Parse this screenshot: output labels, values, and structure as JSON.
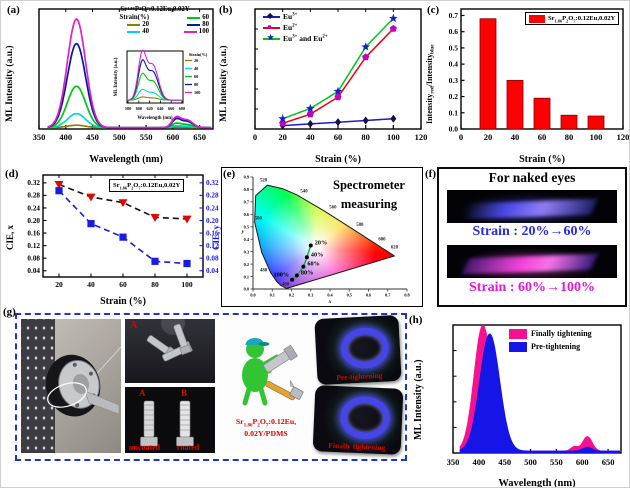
{
  "colors": {
    "panel_letter": "#000000",
    "red_text": "#e00000",
    "g_border_blue": "#2233cc"
  },
  "formula": {
    "el1": "Sr",
    "sub1": "1.86",
    "el2": "P",
    "sub2": "2",
    "el3": "O",
    "sub3": "7",
    "tail": ":0.12Eu,0.02Y"
  },
  "formula_pdms_tail": ":0.12Eu,",
  "formula_pdms_line2": "0.02Y/PDMS",
  "panels": {
    "a": {
      "label": "(a)",
      "xlabel": "Wavelength (nm)",
      "ylabel": "ML Intensity (a.u.)",
      "strain_title": "Strain(%)",
      "strain_labels": [
        "20",
        "40",
        "60",
        "80",
        "100"
      ],
      "inset": {
        "xlabel": "Wavelength (nm)",
        "ylabel": "ML Intensity (a.u.)",
        "strain_title": "Strain(%)"
      }
    },
    "b": {
      "label": "(b)",
      "xlabel": "Strain (%)",
      "ylabel": "ML Intensity (a.u.)",
      "legend": {
        "i1_base": "Eu",
        "i1_sup": "3+",
        "i2_base": "Eu",
        "i2_sup": "2+",
        "i3_base1": "Eu",
        "i3_sup1": "3+",
        "i3_base2": " and Eu",
        "i3_sup2": "2+"
      }
    },
    "c": {
      "label": "(c)",
      "xlabel": "Strain (%)",
      "ylabel": {
        "p1": "Intensity",
        "s1": "red",
        "p2": "/Intensity",
        "s2": "blue"
      }
    },
    "d": {
      "label": "(d)",
      "xlabel": "Strain (%)",
      "ylabel_left": "CIE, x",
      "ylabel_right": "CIE, y"
    },
    "e": {
      "label": "(e)",
      "annotation1": "Spectrometer",
      "annotation2": "measuring",
      "axis_x_letter": "x",
      "axis_y_letter": "y"
    },
    "f": {
      "label": "(f)",
      "title": "For naked eyes",
      "caption1": "Strain : 20%→60%",
      "caption1_color": "#2a2ae6",
      "caption2": "Strain : 60%→100%",
      "caption2_color": "#e416d4"
    },
    "g": {
      "label": "(g)",
      "photo_top_label": "A",
      "photo_bottom_label_a": "A",
      "photo_bottom_label_b": "B",
      "uncoated": "uncoated",
      "coated": "coated",
      "pre_caption": "Pre-tightening",
      "final_caption": "Finally tightening"
    },
    "h": {
      "label": "(h)",
      "xlabel": "Wavelength (nm)",
      "ylabel": "ML Intensity (a.u.)",
      "legend1": "Finally tightening",
      "legend2": "Pre-tightening"
    }
  },
  "chart_data": [
    {
      "panel": "a",
      "type": "line",
      "legend_title": "Sr1.86P2O7:0.12Eu,0.02Y",
      "xlabel": "Wavelength (nm)",
      "ylabel": "ML Intensity (a.u.)",
      "xlim": [
        350,
        675
      ],
      "xticks": [
        350,
        400,
        450,
        500,
        550,
        600,
        650
      ],
      "main_peak_nm": 420,
      "red_peak_nm": 612,
      "series": [
        {
          "name": "20",
          "color": "#8f7f00",
          "main_amp": 0.022,
          "red_amp": 0.004
        },
        {
          "name": "40",
          "color": "#00d8d8",
          "main_amp": 0.125,
          "red_amp": 0.015
        },
        {
          "name": "60",
          "color": "#00c414",
          "main_amp": 0.37,
          "red_amp": 0.035
        },
        {
          "name": "80",
          "color": "#001a9e",
          "main_amp": 0.75,
          "red_amp": 0.07
        },
        {
          "name": "100",
          "color": "#e020cc",
          "main_amp": 0.97,
          "red_amp": 0.085
        }
      ]
    },
    {
      "panel": "a-inset",
      "type": "line",
      "xlim": [
        578,
        682
      ],
      "xticks": [
        580,
        600,
        620,
        640,
        660,
        680
      ],
      "hump_centers_nm": [
        606,
        626
      ],
      "amps": [
        0.06,
        0.2,
        0.5,
        0.75,
        0.93
      ]
    },
    {
      "panel": "b",
      "type": "line",
      "xlabel": "Strain (%)",
      "ylabel": "ML Intensity (a.u.)",
      "x": [
        20,
        40,
        60,
        80,
        100
      ],
      "xlim": [
        0,
        120
      ],
      "xticks": [
        0,
        20,
        40,
        60,
        80,
        100,
        120
      ],
      "ylim": [
        0,
        1
      ],
      "series": [
        {
          "name": "Eu3+",
          "line_color": "#1b1bc8",
          "marker": "diamond",
          "marker_color": "#10104a",
          "values": [
            0.03,
            0.045,
            0.06,
            0.075,
            0.09
          ]
        },
        {
          "name": "Eu2+",
          "line_color": "#e80016",
          "marker": "pentagon",
          "marker_color": "#c000c0",
          "values": [
            0.05,
            0.13,
            0.28,
            0.63,
            0.88
          ]
        },
        {
          "name": "Eu3+ and Eu2+",
          "line_color": "#00c41c",
          "marker": "star",
          "marker_color": "#1b1bc8",
          "values": [
            0.09,
            0.18,
            0.33,
            0.72,
            0.97
          ]
        }
      ]
    },
    {
      "panel": "c",
      "type": "bar",
      "legend_title": "Sr1.86P2O7:0.12Eu,0.02Y",
      "xlabel": "Strain (%)",
      "ylabel": "Intensity_red/Intensity_blue",
      "categories": [
        20,
        40,
        60,
        80,
        100
      ],
      "values": [
        0.68,
        0.3,
        0.19,
        0.085,
        0.08
      ],
      "bar_color": "#ff0000",
      "xlim": [
        0,
        120
      ],
      "xticks": [
        0,
        20,
        40,
        60,
        80,
        100,
        120
      ],
      "ylim": [
        0,
        0.74
      ],
      "yticks": [
        0,
        0.1,
        0.2,
        0.3,
        0.4,
        0.5,
        0.6,
        0.7
      ]
    },
    {
      "panel": "d",
      "type": "line",
      "legend_title": "Sr1.86P2O7:0.12Eu,0.02Y",
      "xlabel": "Strain (%)",
      "x": [
        20,
        40,
        60,
        80,
        100
      ],
      "xticks": [
        20,
        40,
        60,
        80,
        100
      ],
      "ylim": [
        0.02,
        0.345
      ],
      "yticks": [
        0.04,
        0.08,
        0.12,
        0.16,
        0.2,
        0.24,
        0.28,
        0.32
      ],
      "series": [
        {
          "name": "CIE x",
          "values": [
            0.315,
            0.275,
            0.257,
            0.21,
            0.205
          ],
          "line_color": "#111111",
          "marker": "triangle-down",
          "marker_color": "#e80000",
          "dashed": true
        },
        {
          "name": "CIE y",
          "values": [
            0.295,
            0.19,
            0.147,
            0.07,
            0.063
          ],
          "line_color": "#1a1ae0",
          "marker": "square",
          "marker_color": "#1a1ae0",
          "dashed": true
        }
      ]
    },
    {
      "panel": "e",
      "type": "scatter",
      "xlim": [
        0,
        0.8
      ],
      "ylim": [
        0,
        0.9
      ],
      "xticks": [
        0,
        0.1,
        0.2,
        0.3,
        0.4,
        0.5,
        0.6,
        0.7,
        0.8
      ],
      "yticks": [
        0,
        0.1,
        0.2,
        0.3,
        0.4,
        0.5,
        0.6,
        0.7,
        0.8,
        0.9
      ],
      "line_color": "#00b43c",
      "points": [
        {
          "label": "20%",
          "x": 0.3,
          "y": 0.35
        },
        {
          "label": "40%",
          "x": 0.28,
          "y": 0.255
        },
        {
          "label": "60%",
          "x": 0.262,
          "y": 0.18
        },
        {
          "label": "80%",
          "x": 0.228,
          "y": 0.108
        },
        {
          "label": "100%",
          "x": 0.203,
          "y": 0.075
        }
      ],
      "locus_labels": [
        {
          "t": "520",
          "x": 0.055,
          "y": 0.865
        },
        {
          "t": "540",
          "x": 0.265,
          "y": 0.775
        },
        {
          "t": "560",
          "x": 0.415,
          "y": 0.645
        },
        {
          "t": "580",
          "x": 0.555,
          "y": 0.505
        },
        {
          "t": "600",
          "x": 0.67,
          "y": 0.39
        },
        {
          "t": "620",
          "x": 0.735,
          "y": 0.325
        },
        {
          "t": "500",
          "x": 0.028,
          "y": 0.56
        },
        {
          "t": "480",
          "x": 0.055,
          "y": 0.14
        },
        {
          "t": "460",
          "x": 0.17,
          "y": 0.03
        }
      ]
    },
    {
      "panel": "h",
      "type": "area",
      "xlabel": "Wavelength (nm)",
      "ylabel": "ML Intensity (a.u.)",
      "xlim": [
        350,
        675
      ],
      "xticks": [
        350,
        400,
        450,
        500,
        550,
        600,
        650
      ],
      "series": [
        {
          "name": "Finally tightening",
          "color": "#f5118f",
          "main_center": 408,
          "main_sigma": 17,
          "main_amp": 1.0,
          "sub_peaks": [
            {
              "c": 585,
              "a": 0.035,
              "s": 7
            },
            {
              "c": 610,
              "a": 0.115,
              "s": 9
            }
          ]
        },
        {
          "name": "Pre-tightening",
          "color": "#1515e8",
          "main_center": 421,
          "main_sigma": 19,
          "main_amp": 0.93,
          "sub_peaks": [
            {
              "c": 610,
              "a": 0.03,
              "s": 9
            }
          ]
        }
      ]
    }
  ]
}
